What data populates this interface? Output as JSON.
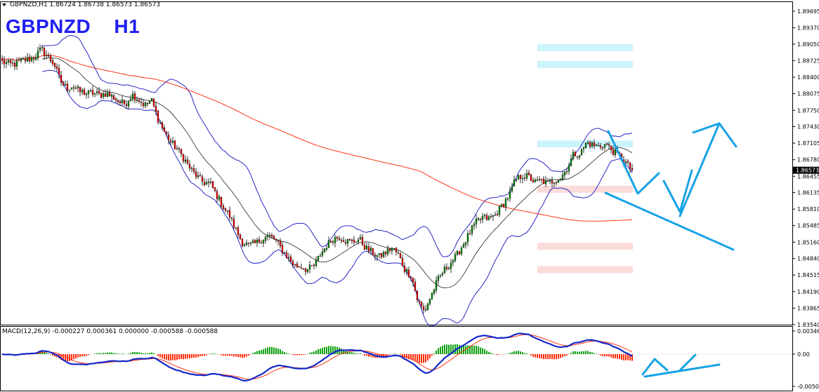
{
  "header": {
    "symbol_line": "GBPNZD,H1  1.86724 1.86738 1.86573 1.86573",
    "title_symbol": "GBPNZD",
    "title_timeframe": "H1"
  },
  "macd_header": "MACD(12,26,9) -0.000227 0.000361 0.000000 -0.000588 -0.000588",
  "current_price_label": "1.86573",
  "colors": {
    "bull_candle": "#008000",
    "bear_candle": "#e00000",
    "bollinger": "#1010c0",
    "sma_200": "#ff2000",
    "annotation": "#17a2e6",
    "title": "#1f1ff0",
    "macd_line": "#1428c8",
    "signal_line": "#ff2000",
    "hist_pos": "#10a010",
    "hist_neg": "#ff3010",
    "zone_resistance": "#ccf4fb",
    "zone_support": "#fbdada"
  },
  "chart_data": [
    {
      "type": "candlestick",
      "title": "GBPNZD H1",
      "ylim": [
        1.8354,
        1.899
      ],
      "y_ticks": [
        "1.89695",
        "1.89370",
        "1.89050",
        "1.88725",
        "1.88400",
        "1.88075",
        "1.87750",
        "1.87430",
        "1.87105",
        "1.86780",
        "1.86455",
        "1.86135",
        "1.85810",
        "1.85485",
        "1.85160",
        "1.84840",
        "1.84515",
        "1.84190",
        "1.83865",
        "1.83540"
      ],
      "close_path": [
        1.887,
        1.8866,
        1.8865,
        1.8873,
        1.8875,
        1.888,
        1.8895,
        1.888,
        1.8866,
        1.8832,
        1.8818,
        1.8822,
        1.8812,
        1.8808,
        1.8809,
        1.8805,
        1.8808,
        1.8802,
        1.8791,
        1.8788,
        1.8806,
        1.8796,
        1.8785,
        1.8795,
        1.8758,
        1.8732,
        1.8712,
        1.8698,
        1.868,
        1.866,
        1.8645,
        1.8633,
        1.8632,
        1.8609,
        1.8586,
        1.8568,
        1.854,
        1.8515,
        1.851,
        1.8513,
        1.8522,
        1.8529,
        1.8521,
        1.8503,
        1.8486,
        1.847,
        1.8468,
        1.8462,
        1.847,
        1.8492,
        1.851,
        1.8523,
        1.8527,
        1.8518,
        1.8517,
        1.8522,
        1.8504,
        1.8496,
        1.8487,
        1.8495,
        1.8505,
        1.8492,
        1.8462,
        1.845,
        1.84,
        1.838,
        1.841,
        1.844,
        1.846,
        1.8475,
        1.849,
        1.8512,
        1.8535,
        1.8555,
        1.8565,
        1.8562,
        1.857,
        1.8589,
        1.8607,
        1.8637,
        1.8647,
        1.8645,
        1.8633,
        1.8637,
        1.8632,
        1.8637,
        1.8643,
        1.8662,
        1.8689,
        1.869,
        1.8712,
        1.8706,
        1.8704,
        1.8708,
        1.8695,
        1.8685,
        1.8672,
        1.8657
      ],
      "current_price": 1.86573,
      "indicators": [
        {
          "name": "Bollinger Bands",
          "color": "blue"
        },
        {
          "name": "Moving average (long)",
          "color": "red"
        }
      ],
      "zones": {
        "resistance": [
          1.8898,
          1.8865,
          1.8709
        ],
        "support": [
          1.862,
          1.8508,
          1.8462
        ]
      }
    },
    {
      "type": "line",
      "title": "MACD(12,26,9)",
      "ylim": [
        -0.005056,
        0.003464
      ],
      "y_ticks": [
        "0.003464",
        "0.00",
        "-0.005056"
      ],
      "values": {
        "main": -0.000227,
        "signal": 0.000361,
        "hist": -0.000588
      }
    }
  ]
}
